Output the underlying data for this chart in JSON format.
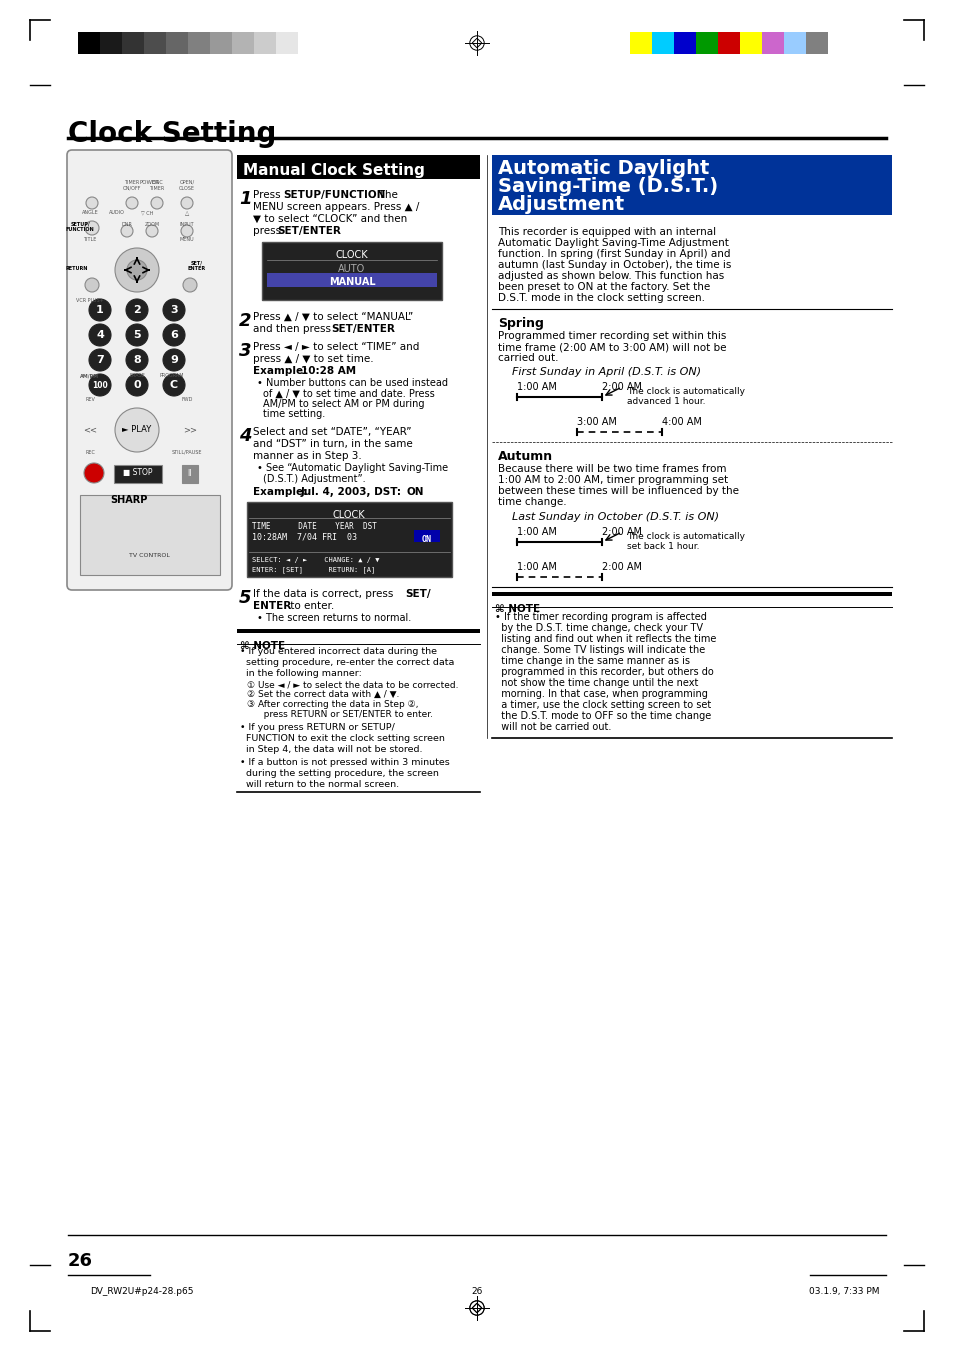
{
  "page_title": "Clock Setting",
  "section1_title": "Manual Clock Setting",
  "section2_title": "Automatic Daylight\nSaving-Time (D.S.T.)\nAdjustment",
  "bg_color": "#ffffff",
  "page_number": "26",
  "footer_left": "DV_RW2U#p24-28.p65",
  "footer_center": "26",
  "footer_right": "03.1.9, 7:33 PM",
  "grayscale_colors": [
    "#000000",
    "#1a1a1a",
    "#333333",
    "#4d4d4d",
    "#666666",
    "#808080",
    "#999999",
    "#b3b3b3",
    "#cccccc",
    "#e6e6e6",
    "#ffffff"
  ],
  "color_bars": [
    "#ffff00",
    "#00ccff",
    "#0000cc",
    "#009900",
    "#cc0000",
    "#ffff00",
    "#cc66cc",
    "#99ccff",
    "#808080"
  ],
  "section1_bg": "#000000",
  "section1_text_color": "#ffffff",
  "step1_text": "Press SETUP/FUNCTION. The\nMENU screen appears. Press ▲ /\n▼ to select “CLOCK” and then\npress SET/ENTER.",
  "clock_screen1_lines": [
    "CLOCK",
    "",
    "AUTO",
    "MANUAL"
  ],
  "step2_text": "Press ▲ / ▼ to select “MANUAL”\nand then press SET/ENTER.",
  "step3_text": "Press ◄ / ► to select “TIME” and\npress ▲ / ▼ to set time.",
  "step3_example": "Example: 10:28 AM",
  "step3_bullets": [
    "Number buttons can be used instead\nof ▲ / ▼ to set time and date. Press\nAM/PM to select AM or PM during\ntime setting."
  ],
  "step4_text": "Select and set “DATE”, “YEAR”\nand “DST” in turn, in the same\nmanner as in Step 3.",
  "step4_bullets": [
    "See “Automatic Daylight Saving-Time\n(D.S.T.) Adjustment”."
  ],
  "step4_example": "Example: Jul. 4, 2003, DST: ON",
  "clock_screen2_header": "CLOCK",
  "clock_screen2_row1": "TIME      DATE    YEAR  DST",
  "clock_screen2_row2": "10:28AM  7/04 FRI 03    ON",
  "clock_screen2_footer": "SELECT: ◄ / ►    CHANGE: ▲ / ▼\nENTER: [SET]    RETURN: [A]",
  "step5_text": "If the data is correct, press SET/\nENTER to enter.",
  "step5_bullets": [
    "The screen returns to normal."
  ],
  "note1_title": "NOTE",
  "note1_bullets": [
    "If you entered incorrect data during the\nsetting procedure, re-enter the correct data\nin the following manner:\n① Use ◄ / ► to select the data to be corrected.\n② Set the correct data with ▲ / ▼.\n③ After correcting the data in Step ②,\n   press RETURN or SET/ENTER to enter.",
    "If you press RETURN or SETUP/\nFUNCTION to exit the clock setting screen\nin Step 4, the data will not be stored.",
    "If a button is not pressed within 3 minutes\nduring the setting procedure, the screen\nwill return to the normal screen."
  ],
  "dst_intro": "This recorder is equipped with an internal\nAutomatic Daylight Saving-Time Adjustment\nfunction. In spring (first Sunday in April) and\nautumn (last Sunday in October), the time is\nadjusted as shown below. This function has\nbeen preset to ON at the factory. Set the\nD.S.T. mode in the clock setting screen.",
  "spring_title": "Spring",
  "spring_text": "Programmed timer recording set within this\ntime frame (2:00 AM to 3:00 AM) will not be\ncarried out.",
  "spring_chart_title": "First Sunday in April (D.S.T. is ON)",
  "spring_labels_top": [
    "1:00 AM",
    "2:00 AM"
  ],
  "spring_labels_bottom": [
    "3:00 AM",
    "4:00 AM"
  ],
  "spring_arrow_text": "The clock is automatically\nadvanced 1 hour.",
  "autumn_title": "Autumn",
  "autumn_text": "Because there will be two time frames from\n1:00 AM to 2:00 AM, timer programming set\nbetween these times will be influenced by the\ntime change.",
  "autumn_chart_title": "Last Sunday in October (D.S.T. is ON)",
  "autumn_labels_top": [
    "1:00 AM",
    "2:00 AM"
  ],
  "autumn_labels_bottom": [
    "1:00 AM",
    "2:00 AM"
  ],
  "autumn_arrow_text": "The clock is automatically\nset back 1 hour.",
  "note2_title": "NOTE",
  "note2_bullets": [
    "If the timer recording program is affected\nby the D.S.T. time change, check your TV\nlisting and find out when it reflects the time\nchange. Some TV listings will indicate the\ntime change in the same manner as is\nprogrammed in this recorder, but others do\nnot show the time change until the next\nmorning. In that case, when programming\na timer, use the clock setting screen to set\nthe D.S.T. mode to OFF so the time change\nwill not be carried out."
  ]
}
